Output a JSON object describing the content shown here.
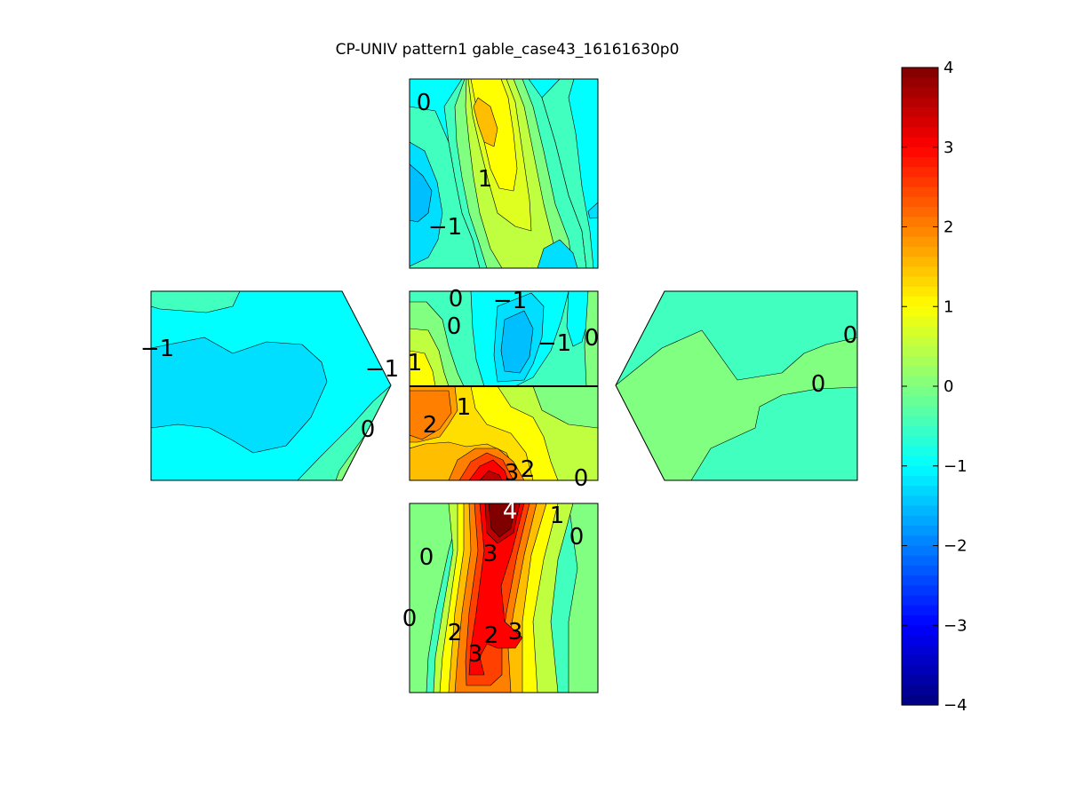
{
  "chart_data": {
    "type": "heatmap",
    "title": "CP-UNIV pattern1 gable_case43_16161630p0",
    "colormap": "jet",
    "clim": [
      -4,
      4
    ],
    "colorbar": {
      "ticks": [
        {
          "value": 4,
          "label": "4"
        },
        {
          "value": 3,
          "label": "3"
        },
        {
          "value": 2,
          "label": "2"
        },
        {
          "value": 1,
          "label": "1"
        },
        {
          "value": 0,
          "label": "0"
        },
        {
          "value": -1,
          "label": "−1"
        },
        {
          "value": -2,
          "label": "−2"
        },
        {
          "value": -3,
          "label": "−3"
        },
        {
          "value": -4,
          "label": "−4"
        }
      ]
    },
    "panels": [
      {
        "name": "top face",
        "contour_labels": [
          {
            "text": "0",
            "value": 0
          },
          {
            "text": "1",
            "value": 1
          },
          {
            "text": "−1",
            "value": -1
          }
        ]
      },
      {
        "name": "left gable face",
        "contour_labels": [
          {
            "text": "−1",
            "value": -1
          },
          {
            "text": "−1",
            "value": -1
          },
          {
            "text": "0",
            "value": 0
          }
        ]
      },
      {
        "name": "roof",
        "contour_labels": [
          {
            "text": "0",
            "value": 0
          },
          {
            "text": "−1",
            "value": -1
          },
          {
            "text": "0",
            "value": 0
          },
          {
            "text": "−1",
            "value": -1
          },
          {
            "text": "0",
            "value": 0
          },
          {
            "text": "1",
            "value": 1
          },
          {
            "text": "1",
            "value": 1
          },
          {
            "text": "2",
            "value": 2
          },
          {
            "text": "3",
            "value": 3
          },
          {
            "text": "2",
            "value": 2
          },
          {
            "text": "0",
            "value": 0
          }
        ]
      },
      {
        "name": "right gable face",
        "contour_labels": [
          {
            "text": "0",
            "value": 0
          },
          {
            "text": "0",
            "value": 0
          }
        ]
      },
      {
        "name": "bottom face",
        "contour_labels": [
          {
            "text": "4",
            "value": 4
          },
          {
            "text": "1",
            "value": 1
          },
          {
            "text": "0",
            "value": 0
          },
          {
            "text": "0",
            "value": 0
          },
          {
            "text": "3",
            "value": 3
          },
          {
            "text": "0",
            "value": 0
          },
          {
            "text": "2",
            "value": 2
          },
          {
            "text": "2",
            "value": 2
          },
          {
            "text": "3",
            "value": 3
          },
          {
            "text": "3",
            "value": 3
          }
        ]
      }
    ]
  }
}
